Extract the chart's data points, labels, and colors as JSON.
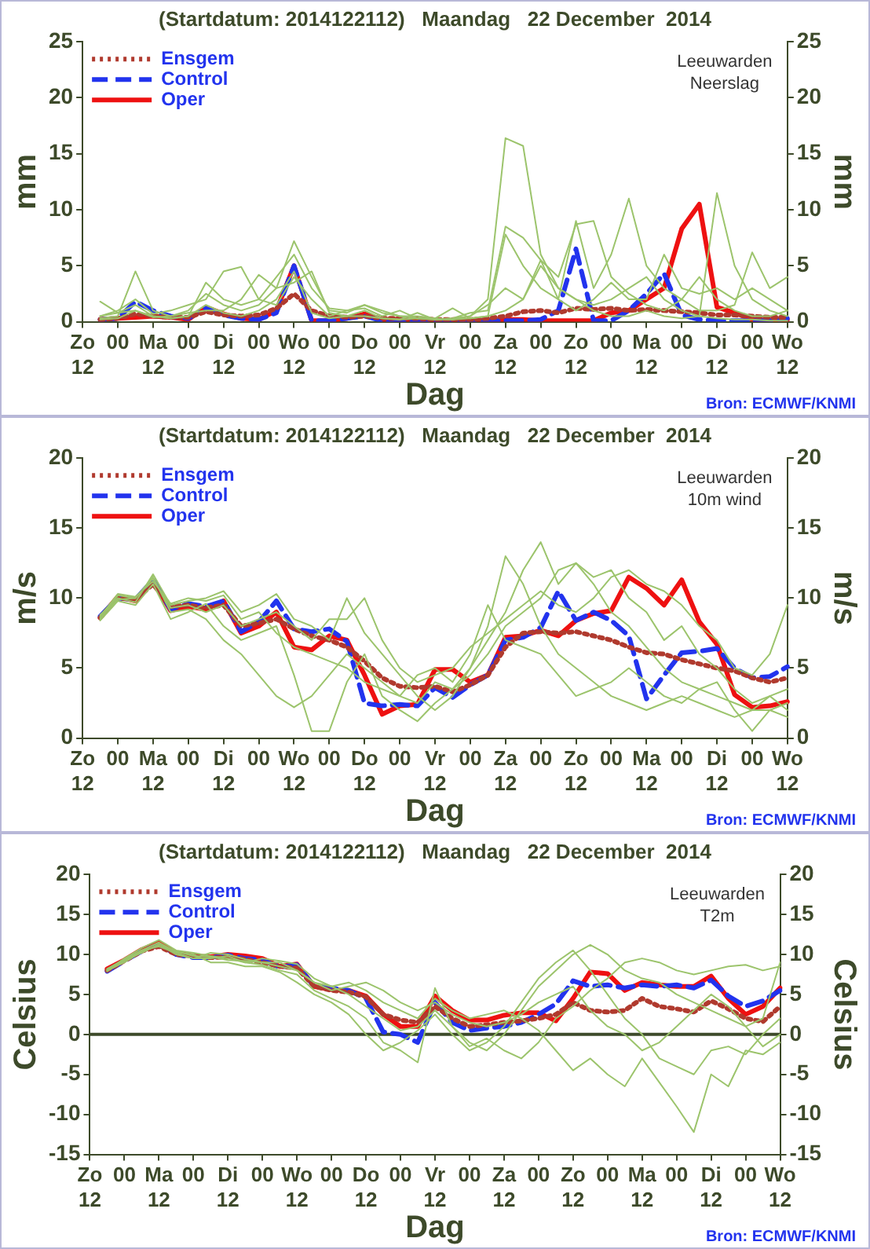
{
  "chart_data": [
    {
      "type": "line",
      "title": "(Startdatum: 2014122112)   Maandag   22 December  2014",
      "xlabel": "Dag",
      "ylabel": "mm",
      "y2label": "mm",
      "annotations": [
        "Leeuwarden\nNeerslag",
        "Bron: ECMWF/KNMI"
      ],
      "legend": "top left",
      "grid": false,
      "marker": "none",
      "categories": [
        "Zo\n12",
        null,
        "00",
        null,
        "Ma\n12",
        null,
        "00",
        null,
        "Di\n12",
        null,
        "00",
        null,
        "Wo\n12",
        null,
        "00",
        null,
        "Do\n12",
        null,
        "00",
        null,
        "Vr\n12",
        null,
        "00",
        null,
        "Za\n12",
        null,
        "00",
        null,
        "Zo\n12",
        null,
        "00",
        null,
        "Ma\n12",
        null,
        "00",
        null,
        "Di\n12",
        null,
        "00",
        null,
        "Wo\n12"
      ],
      "ylim": [
        0,
        25
      ],
      "yticks": [
        0,
        5,
        10,
        15,
        20,
        25
      ],
      "y2lim": [
        0,
        25
      ],
      "y2ticks": [
        0,
        5,
        10,
        15,
        20,
        25
      ],
      "series": [
        {
          "color": "#9cc46c",
          "line_style": "solid",
          "values": [
            null,
            0.5,
            0.8,
            1.0,
            0.5,
            0.3,
            0.5,
            1.5,
            0.8,
            0.5,
            1.0,
            2.0,
            4.5,
            0.8,
            0.3,
            0.5,
            1.0,
            0.3,
            0.2,
            0.3,
            0.2,
            0.3,
            0.5,
            2.0,
            16.4,
            15.7,
            6.0,
            3.0,
            2.0,
            1.0,
            0.5,
            0.5,
            1.0,
            0.5,
            0.3,
            0.5,
            0.3,
            0.2,
            0.2,
            0.1,
            0.1
          ]
        },
        {
          "color": "#9cc46c",
          "line_style": "solid",
          "values": [
            null,
            0.3,
            0.5,
            4.5,
            1.0,
            0.5,
            1.0,
            2.5,
            1.5,
            1.0,
            1.5,
            3.0,
            7.2,
            4.0,
            1.0,
            0.8,
            1.5,
            1.0,
            0.5,
            0.3,
            0.3,
            0.2,
            0.3,
            0.5,
            1.0,
            2.0,
            5.0,
            3.0,
            2.0,
            1.5,
            2.0,
            3.0,
            4.0,
            2.0,
            1.0,
            0.5,
            11.5,
            5.0,
            2.0,
            1.0,
            0.5
          ]
        },
        {
          "color": "#9cc46c",
          "line_style": "solid",
          "values": [
            null,
            1.8,
            0.8,
            1.5,
            0.5,
            0.3,
            0.5,
            3.5,
            2.0,
            1.5,
            2.0,
            4.0,
            6.0,
            3.0,
            1.2,
            1.0,
            1.5,
            0.8,
            0.5,
            0.5,
            0.3,
            1.2,
            0.3,
            0.5,
            7.8,
            5.0,
            3.0,
            2.0,
            9.0,
            3.0,
            6.0,
            11.0,
            5.0,
            3.0,
            2.0,
            1.0,
            1.0,
            1.5,
            6.2,
            3.0,
            4.0
          ]
        },
        {
          "color": "#9cc46c",
          "line_style": "solid",
          "values": [
            null,
            0.5,
            1.0,
            2.0,
            0.7,
            1.0,
            1.5,
            2.0,
            4.5,
            4.9,
            2.0,
            1.5,
            4.0,
            2.0,
            0.5,
            1.0,
            1.2,
            0.5,
            1.0,
            0.3,
            0.2,
            0.3,
            0.8,
            1.0,
            8.5,
            7.5,
            5.5,
            4.0,
            8.7,
            9.0,
            4.0,
            2.5,
            1.5,
            1.0,
            2.0,
            4.0,
            2.0,
            1.0,
            0.5,
            0.5,
            1.0
          ]
        },
        {
          "color": "#9cc46c",
          "line_style": "solid",
          "values": [
            null,
            0.2,
            0.3,
            1.0,
            0.4,
            0.5,
            0.8,
            1.0,
            1.0,
            2.0,
            4.2,
            3.0,
            3.5,
            4.5,
            0.8,
            0.5,
            0.5,
            0.3,
            0.2,
            0.8,
            0.2,
            0.2,
            0.5,
            1.5,
            3.0,
            2.0,
            5.5,
            2.0,
            1.0,
            2.0,
            3.5,
            2.0,
            2.0,
            6.0,
            3.0,
            2.5,
            3.0,
            2.0,
            3.0,
            2.0,
            1.0
          ]
        },
        {
          "name": "Ensgem",
          "color": "#b03a2e",
          "line_style": "dotted",
          "values": [
            null,
            0.2,
            0.3,
            0.7,
            0.5,
            0.4,
            0.4,
            0.9,
            0.6,
            0.5,
            0.6,
            1.2,
            2.5,
            1.0,
            0.5,
            0.4,
            0.5,
            0.3,
            0.3,
            0.3,
            0.2,
            0.2,
            0.2,
            0.3,
            0.5,
            0.9,
            1.0,
            0.8,
            1.2,
            1.1,
            1.2,
            1.0,
            1.1,
            1.0,
            0.9,
            0.8,
            0.6,
            0.6,
            0.5,
            0.4,
            0.4
          ]
        },
        {
          "name": "Control",
          "color": "#2233ee",
          "line_style": "dashed",
          "values": [
            null,
            0.2,
            0.3,
            1.8,
            1.0,
            0.5,
            0.3,
            1.2,
            0.6,
            0.3,
            0.2,
            0.8,
            5.0,
            0.1,
            0.1,
            0.3,
            0.5,
            0.1,
            0.1,
            0.1,
            0.1,
            0.1,
            0.1,
            0.1,
            0.1,
            0.1,
            0.2,
            1.0,
            6.5,
            0.1,
            0.1,
            1.0,
            2.5,
            4.3,
            0.6,
            0.2,
            0.1,
            0.1,
            0.1,
            0.1,
            0.3
          ]
        },
        {
          "name": "Oper",
          "color": "#ee1111",
          "line_style": "solid",
          "values": [
            null,
            0.2,
            0.3,
            0.4,
            0.5,
            0.4,
            0.2,
            1.3,
            0.7,
            0.3,
            0.2,
            1.0,
            5.0,
            0.1,
            0.1,
            0.3,
            0.7,
            0.2,
            0.2,
            0.2,
            0.1,
            0.1,
            0.1,
            0.1,
            0.2,
            0.2,
            0.1,
            0.1,
            0.1,
            0.1,
            0.8,
            1.0,
            2.0,
            3.0,
            8.3,
            10.5,
            1.3,
            0.8,
            0.2,
            0.1,
            0.2
          ]
        }
      ]
    },
    {
      "type": "line",
      "title": "(Startdatum: 2014122112)   Maandag   22 December  2014",
      "xlabel": "Dag",
      "ylabel": "m/s",
      "y2label": "m/s",
      "annotations": [
        "Leeuwarden\n10m wind",
        "Bron: ECMWF/KNMI"
      ],
      "legend": "top left",
      "grid": false,
      "marker": "none",
      "categories": [
        "Zo\n12",
        null,
        "00",
        null,
        "Ma\n12",
        null,
        "00",
        null,
        "Di\n12",
        null,
        "00",
        null,
        "Wo\n12",
        null,
        "00",
        null,
        "Do\n12",
        null,
        "00",
        null,
        "Vr\n12",
        null,
        "00",
        null,
        "Za\n12",
        null,
        "00",
        null,
        "Zo\n12",
        null,
        "00",
        null,
        "Ma\n12",
        null,
        "00",
        null,
        "Di\n12",
        null,
        "00",
        null,
        "Wo\n12"
      ],
      "ylim": [
        0,
        20
      ],
      "yticks": [
        0,
        5,
        10,
        15,
        20
      ],
      "y2lim": [
        0,
        20
      ],
      "y2ticks": [
        0,
        5,
        10,
        15,
        20
      ],
      "series": [
        {
          "color": "#9cc46c",
          "line_style": "solid",
          "values": [
            null,
            8.5,
            10.2,
            10.0,
            11.5,
            9.0,
            9.2,
            8.5,
            7.0,
            6.0,
            4.5,
            3.0,
            2.2,
            3.0,
            4.5,
            6.0,
            5.0,
            4.0,
            3.0,
            2.5,
            4.0,
            3.5,
            5.0,
            7.0,
            9.0,
            12.0,
            14.0,
            11.0,
            12.5,
            11.0,
            9.0,
            8.0,
            6.5,
            5.0,
            4.0,
            3.5,
            3.0,
            2.5,
            2.0,
            2.0,
            2.5
          ]
        },
        {
          "color": "#9cc46c",
          "line_style": "solid",
          "values": [
            null,
            8.8,
            10.0,
            9.7,
            11.7,
            9.5,
            9.8,
            10.0,
            10.5,
            9.0,
            9.5,
            10.3,
            8.5,
            8.0,
            7.0,
            10.0,
            7.5,
            6.0,
            4.5,
            3.0,
            2.0,
            3.0,
            5.0,
            8.0,
            13.0,
            11.0,
            8.0,
            6.0,
            5.0,
            4.0,
            3.0,
            2.5,
            2.0,
            2.5,
            3.0,
            2.5,
            2.0,
            1.5,
            2.0,
            3.0,
            2.0
          ]
        },
        {
          "color": "#9cc46c",
          "line_style": "solid",
          "values": [
            null,
            8.4,
            9.8,
            9.5,
            11.0,
            8.5,
            9.0,
            9.6,
            8.0,
            7.0,
            7.5,
            8.0,
            4.5,
            0.5,
            0.5,
            4.0,
            6.0,
            3.0,
            2.0,
            1.2,
            2.5,
            3.5,
            4.5,
            6.0,
            8.0,
            9.0,
            10.0,
            12.0,
            12.5,
            11.5,
            12.0,
            10.0,
            9.0,
            7.0,
            8.0,
            6.0,
            5.0,
            3.5,
            2.5,
            3.0,
            3.5
          ]
        },
        {
          "color": "#9cc46c",
          "line_style": "solid",
          "values": [
            null,
            8.7,
            10.3,
            10.1,
            11.2,
            9.6,
            10.0,
            9.8,
            10.2,
            8.5,
            9.0,
            7.5,
            6.5,
            6.0,
            5.5,
            5.0,
            4.0,
            3.5,
            3.0,
            4.5,
            5.0,
            4.0,
            6.0,
            9.5,
            7.0,
            6.5,
            6.0,
            4.5,
            3.0,
            3.5,
            4.0,
            5.0,
            4.0,
            3.0,
            2.5,
            3.5,
            4.0,
            2.0,
            0.5,
            2.0,
            1.5
          ]
        },
        {
          "color": "#9cc46c",
          "line_style": "solid",
          "values": [
            null,
            8.6,
            9.9,
            10.0,
            11.4,
            9.3,
            9.5,
            9.0,
            9.5,
            8.0,
            8.5,
            9.0,
            8.0,
            7.0,
            8.5,
            8.5,
            10.0,
            7.0,
            5.0,
            4.0,
            4.5,
            5.0,
            6.5,
            7.5,
            8.5,
            9.5,
            10.5,
            9.5,
            9.0,
            10.0,
            11.5,
            12.0,
            11.0,
            10.5,
            9.5,
            8.0,
            7.0,
            5.0,
            4.5,
            6.0,
            9.5
          ]
        },
        {
          "name": "Ensgem",
          "color": "#b03a2e",
          "line_style": "dotted",
          "values": [
            null,
            8.6,
            10.0,
            9.9,
            11.0,
            9.4,
            9.5,
            9.3,
            9.5,
            8.0,
            8.2,
            8.5,
            7.8,
            7.3,
            7.0,
            6.5,
            5.5,
            4.3,
            3.7,
            3.6,
            3.7,
            3.3,
            3.8,
            4.5,
            6.5,
            7.5,
            7.6,
            7.5,
            7.6,
            7.3,
            7.0,
            6.5,
            6.1,
            6.0,
            5.6,
            5.3,
            5.0,
            4.8,
            4.3,
            4.0,
            4.3
          ]
        },
        {
          "name": "Control",
          "color": "#2233ee",
          "line_style": "dashed",
          "values": [
            null,
            8.7,
            10.0,
            9.9,
            11.3,
            9.2,
            9.6,
            9.4,
            9.8,
            7.6,
            8.3,
            9.8,
            7.8,
            7.6,
            7.8,
            6.9,
            2.5,
            2.3,
            2.4,
            2.3,
            3.6,
            2.9,
            3.8,
            4.5,
            7.0,
            7.2,
            7.9,
            10.5,
            8.4,
            9.0,
            8.4,
            7.3,
            2.8,
            4.5,
            6.1,
            6.2,
            6.4,
            5.0,
            4.3,
            4.4,
            5.1
          ]
        },
        {
          "name": "Oper",
          "color": "#ee1111",
          "line_style": "solid",
          "values": [
            null,
            8.6,
            10.1,
            9.8,
            11.2,
            9.1,
            9.4,
            9.2,
            9.8,
            7.5,
            8.0,
            9.0,
            6.5,
            6.3,
            7.3,
            7.0,
            4.5,
            1.7,
            2.3,
            2.4,
            4.9,
            4.9,
            4.0,
            4.5,
            7.2,
            7.3,
            7.7,
            7.3,
            8.4,
            8.9,
            9.1,
            11.5,
            10.7,
            9.5,
            11.3,
            8.3,
            6.7,
            3.1,
            2.2,
            2.3,
            2.6
          ]
        }
      ]
    },
    {
      "type": "line",
      "title": "(Startdatum: 2014122112)   Maandag   22 December  2014",
      "xlabel": "Dag",
      "ylabel": "Celsius",
      "y2label": "Celsius",
      "annotations": [
        "Leeuwarden\nT2m",
        "Bron: ECMWF/KNMI"
      ],
      "legend": "top left",
      "grid": false,
      "marker": "none",
      "ref_lines": [
        {
          "axis": "y",
          "value": 0,
          "color": "#3d4a2a"
        }
      ],
      "categories": [
        "Zo\n12",
        null,
        "00",
        null,
        "Ma\n12",
        null,
        "00",
        null,
        "Di\n12",
        null,
        "00",
        null,
        "Wo\n12",
        null,
        "00",
        null,
        "Do\n12",
        null,
        "00",
        null,
        "Vr\n12",
        null,
        "00",
        null,
        "Za\n12",
        null,
        "00",
        null,
        "Zo\n12",
        null,
        "00",
        null,
        "Ma\n12",
        null,
        "00",
        null,
        "Di\n12",
        null,
        "00",
        null,
        "Wo\n12"
      ],
      "ylim": [
        -15,
        20
      ],
      "yticks": [
        -15,
        -10,
        -5,
        0,
        5,
        10,
        15,
        20
      ],
      "y2lim": [
        -15,
        20
      ],
      "y2ticks": [
        -15,
        -10,
        -5,
        0,
        5,
        10,
        15,
        20
      ],
      "series": [
        {
          "color": "#9cc46c",
          "line_style": "solid",
          "values": [
            null,
            8.0,
            9.5,
            10.8,
            11.8,
            10.5,
            10.2,
            9.8,
            9.5,
            9.0,
            8.7,
            8.0,
            7.5,
            5.5,
            4.5,
            3.5,
            2.0,
            -1.0,
            -2.0,
            -3.5,
            5.8,
            1.0,
            -1.0,
            -2.0,
            0.0,
            3.0,
            6.0,
            8.0,
            10.0,
            11.2,
            10.0,
            8.0,
            7.0,
            6.5,
            5.0,
            4.0,
            3.0,
            2.0,
            1.0,
            2.0,
            9.0
          ]
        },
        {
          "color": "#9cc46c",
          "line_style": "solid",
          "values": [
            null,
            7.9,
            9.2,
            10.5,
            11.0,
            10.2,
            9.5,
            10.2,
            10.0,
            9.4,
            9.0,
            9.0,
            8.0,
            6.5,
            6.0,
            6.5,
            5.5,
            4.0,
            3.0,
            2.0,
            4.5,
            3.0,
            2.0,
            2.5,
            3.0,
            2.0,
            0.5,
            -2.0,
            -4.5,
            -3.0,
            -5.0,
            -6.5,
            -3.0,
            -6.0,
            -9.0,
            -12.2,
            -5.0,
            -6.5,
            -2.0,
            -2.5,
            -1.0
          ]
        },
        {
          "color": "#9cc46c",
          "line_style": "solid",
          "values": [
            null,
            8.1,
            9.3,
            10.2,
            11.3,
            10.0,
            9.5,
            9.5,
            9.8,
            9.0,
            9.5,
            9.2,
            8.8,
            7.0,
            6.0,
            5.0,
            3.5,
            2.0,
            0.5,
            1.0,
            3.0,
            1.0,
            -1.5,
            -0.5,
            -2.0,
            -3.0,
            -1.0,
            2.0,
            3.5,
            5.5,
            7.0,
            9.0,
            9.5,
            9.0,
            8.0,
            7.5,
            8.0,
            8.5,
            8.7,
            8.0,
            8.5
          ]
        },
        {
          "color": "#9cc46c",
          "line_style": "solid",
          "values": [
            null,
            8.2,
            9.4,
            10.5,
            11.5,
            10.3,
            10.0,
            9.0,
            9.0,
            8.5,
            8.5,
            7.8,
            6.5,
            5.0,
            4.0,
            2.5,
            0.0,
            -2.0,
            -1.0,
            0.5,
            2.5,
            0.0,
            -2.0,
            -1.0,
            1.0,
            4.0,
            7.0,
            9.0,
            10.5,
            8.0,
            5.0,
            2.0,
            0.0,
            -3.0,
            -4.0,
            -5.0,
            -2.0,
            -1.5,
            -2.5,
            0.0,
            2.0
          ]
        },
        {
          "color": "#9cc46c",
          "line_style": "solid",
          "values": [
            null,
            8.0,
            9.0,
            10.3,
            11.2,
            10.4,
            9.8,
            9.7,
            9.3,
            9.2,
            9.0,
            8.5,
            8.0,
            6.5,
            5.5,
            6.0,
            6.5,
            5.5,
            4.0,
            3.0,
            4.0,
            2.5,
            1.5,
            1.0,
            1.5,
            2.5,
            4.0,
            5.0,
            6.0,
            3.0,
            1.0,
            0.0,
            -2.0,
            -1.0,
            1.0,
            3.0,
            5.0,
            3.5,
            1.0,
            -1.5,
            0.0
          ]
        },
        {
          "name": "Ensgem",
          "color": "#b03a2e",
          "line_style": "dotted",
          "values": [
            null,
            8.0,
            9.2,
            10.4,
            11.0,
            10.0,
            9.8,
            9.6,
            9.7,
            9.4,
            9.0,
            8.5,
            8.3,
            6.0,
            5.5,
            5.3,
            4.7,
            2.5,
            1.8,
            1.5,
            3.5,
            2.0,
            1.0,
            1.2,
            1.5,
            1.7,
            2.0,
            2.5,
            4.0,
            3.0,
            2.8,
            3.0,
            4.5,
            3.5,
            3.2,
            2.8,
            4.2,
            3.2,
            2.0,
            1.6,
            3.5
          ]
        },
        {
          "name": "Control",
          "color": "#2233ee",
          "line_style": "dashed",
          "values": [
            null,
            7.9,
            9.2,
            10.4,
            11.2,
            10.0,
            9.6,
            9.6,
            9.9,
            9.5,
            9.3,
            8.4,
            8.7,
            6.0,
            5.8,
            5.5,
            4.5,
            0.3,
            0.0,
            -1.0,
            4.0,
            1.5,
            0.5,
            0.8,
            1.0,
            1.5,
            2.5,
            3.8,
            6.7,
            6.0,
            6.2,
            5.8,
            6.2,
            6.0,
            6.2,
            5.8,
            6.8,
            4.8,
            3.5,
            4.2,
            5.5
          ]
        },
        {
          "name": "Oper",
          "color": "#ee1111",
          "line_style": "solid",
          "values": [
            null,
            8.2,
            9.3,
            10.6,
            11.5,
            10.2,
            9.8,
            9.7,
            10.0,
            9.8,
            9.5,
            8.5,
            8.8,
            6.0,
            5.6,
            5.5,
            4.8,
            2.5,
            1.0,
            1.0,
            4.8,
            3.0,
            1.8,
            1.8,
            2.4,
            2.7,
            2.7,
            1.7,
            4.5,
            7.8,
            7.6,
            5.5,
            6.5,
            6.2,
            6.0,
            6.0,
            7.3,
            4.5,
            2.5,
            3.5,
            5.8
          ]
        }
      ]
    }
  ]
}
